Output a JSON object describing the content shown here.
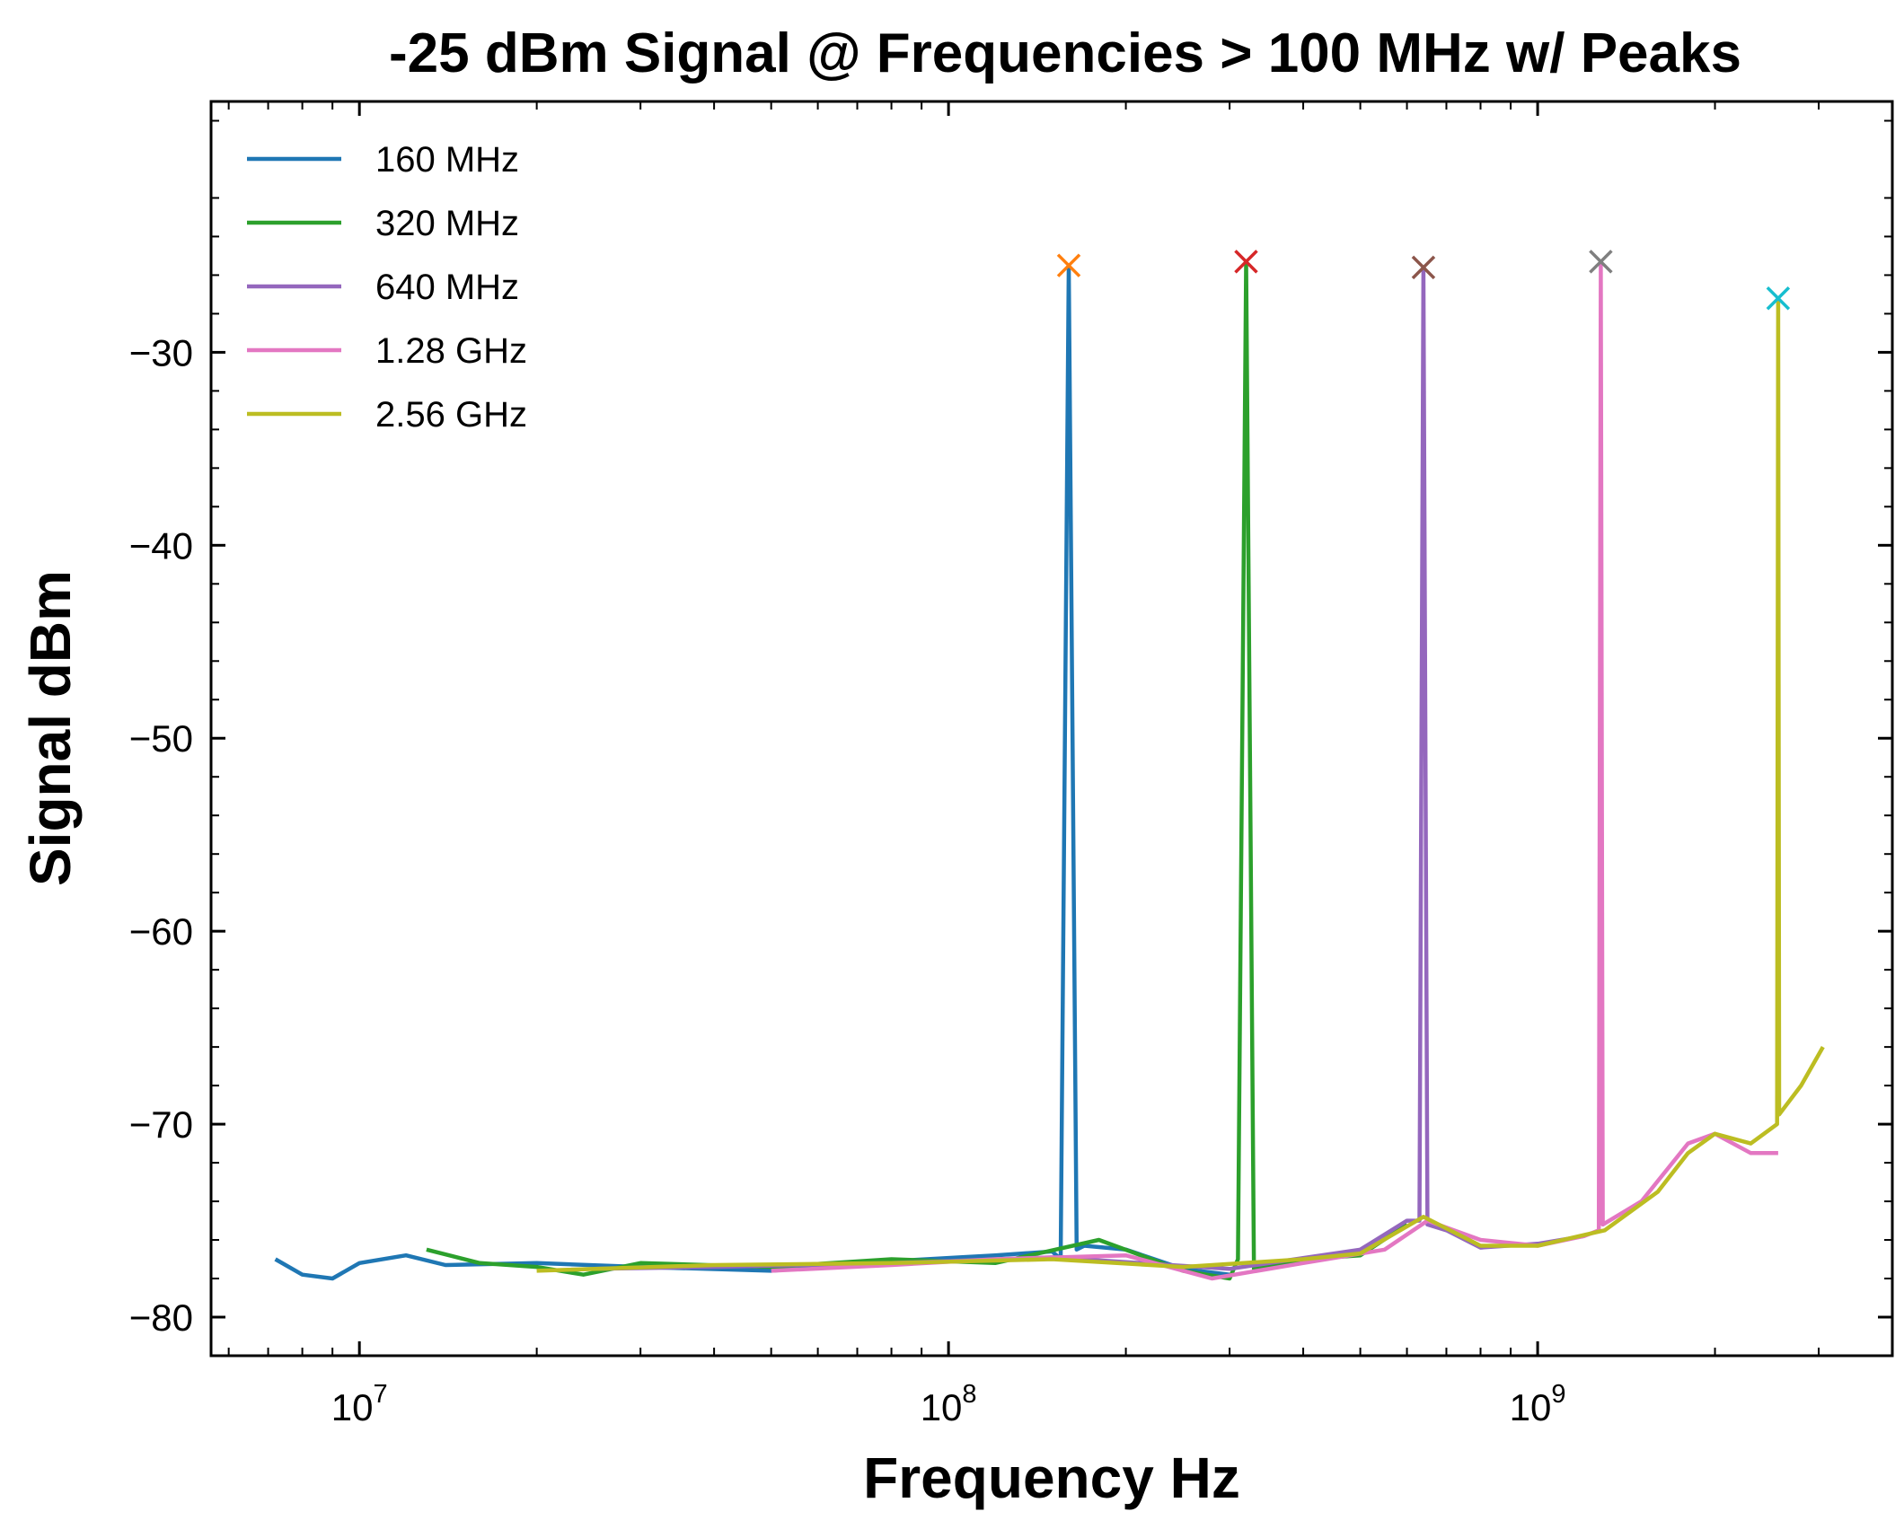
{
  "chart_data": {
    "type": "line",
    "title": "-25 dBm Signal @ Frequencies > 100 MHz w/ Peaks",
    "xlabel": "Frequency Hz",
    "ylabel": "Signal dBm",
    "xscale": "log",
    "xlim": [
      5600000.0,
      4000000000.0
    ],
    "ylim": [
      -82,
      -17
    ],
    "x_ticks": [
      {
        "value": 10000000.0,
        "base": "10",
        "exp": "7"
      },
      {
        "value": 100000000.0,
        "base": "10",
        "exp": "8"
      },
      {
        "value": 1000000000.0,
        "base": "10",
        "exp": "9"
      }
    ],
    "y_ticks": [
      {
        "value": -30,
        "label": "−30"
      },
      {
        "value": -40,
        "label": "−40"
      },
      {
        "value": -50,
        "label": "−50"
      },
      {
        "value": -60,
        "label": "−60"
      },
      {
        "value": -70,
        "label": "−70"
      },
      {
        "value": -80,
        "label": "−80"
      }
    ],
    "grid": false,
    "legend_position": "top-left",
    "series": [
      {
        "name": "160 MHz",
        "color": "#1f77b4",
        "x": [
          7200000.0,
          8000000.0,
          9000000.0,
          10000000.0,
          12000000.0,
          14000000.0,
          20000000.0,
          30000000.0,
          50000000.0,
          80000000.0,
          120000000.0,
          150000000.0,
          155000000.0,
          160000000.0,
          165000000.0,
          170000000.0,
          200000000.0,
          250000000.0,
          300000000.0
        ],
        "y": [
          -77.0,
          -77.8,
          -78.0,
          -77.2,
          -76.8,
          -77.3,
          -77.2,
          -77.4,
          -77.6,
          -77.1,
          -76.8,
          -76.6,
          -77.0,
          -25.5,
          -76.5,
          -76.3,
          -76.5,
          -77.5,
          -77.8
        ]
      },
      {
        "name": "320 MHz",
        "color": "#2ca02c",
        "x": [
          13000000.0,
          16000000.0,
          20000000.0,
          24000000.0,
          30000000.0,
          50000000.0,
          80000000.0,
          120000000.0,
          180000000.0,
          250000000.0,
          300000000.0,
          310000000.0,
          320000000.0,
          330000000.0,
          400000000.0,
          500000000.0,
          600000000.0
        ],
        "y": [
          -76.5,
          -77.2,
          -77.4,
          -77.8,
          -77.2,
          -77.4,
          -77.0,
          -77.2,
          -76.0,
          -77.6,
          -78.0,
          -77.0,
          -25.3,
          -77.5,
          -77.0,
          -76.8,
          -75.2
        ]
      },
      {
        "name": "640 MHz",
        "color": "#9467bd",
        "x": [
          25000000.0,
          40000000.0,
          80000000.0,
          150000000.0,
          300000000.0,
          500000000.0,
          600000000.0,
          630000000.0,
          640000000.0,
          650000000.0,
          700000000.0,
          800000000.0,
          1000000000.0,
          1200000000.0
        ],
        "y": [
          -77.5,
          -77.4,
          -77.2,
          -76.9,
          -77.5,
          -76.5,
          -75.0,
          -75.0,
          -25.6,
          -75.2,
          -75.5,
          -76.4,
          -76.2,
          -75.8
        ]
      },
      {
        "name": "1.28 GHz",
        "color": "#e377c2",
        "x": [
          50000000.0,
          80000000.0,
          120000000.0,
          200000000.0,
          280000000.0,
          400000000.0,
          550000000.0,
          650000000.0,
          800000000.0,
          1000000000.0,
          1200000000.0,
          1270000000.0,
          1280000000.0,
          1290000000.0,
          1500000000.0,
          1800000000.0,
          2000000000.0,
          2300000000.0,
          2560000000.0
        ],
        "y": [
          -77.6,
          -77.3,
          -77.0,
          -76.8,
          -78.0,
          -77.2,
          -76.5,
          -75.0,
          -76.0,
          -76.3,
          -75.8,
          -75.5,
          -25.3,
          -75.2,
          -74.0,
          -71.0,
          -70.5,
          -71.5,
          -71.5
        ]
      },
      {
        "name": "2.56 GHz",
        "color": "#bcbd22",
        "x": [
          20000000.0,
          40000000.0,
          80000000.0,
          150000000.0,
          250000000.0,
          400000000.0,
          500000000.0,
          640000000.0,
          800000000.0,
          1000000000.0,
          1300000000.0,
          1600000000.0,
          1800000000.0,
          2000000000.0,
          2300000000.0,
          2550000000.0,
          2560000000.0,
          2570000000.0,
          2800000000.0,
          3050000000.0
        ],
        "y": [
          -77.6,
          -77.3,
          -77.2,
          -77.0,
          -77.4,
          -77.0,
          -76.7,
          -74.8,
          -76.3,
          -76.3,
          -75.5,
          -73.5,
          -71.5,
          -70.5,
          -71.0,
          -70.0,
          -27.2,
          -69.5,
          -68.0,
          -66.0
        ]
      }
    ],
    "peak_markers": [
      {
        "x": 160000000.0,
        "y": -25.5,
        "color": "#ff7f0e"
      },
      {
        "x": 320000000.0,
        "y": -25.3,
        "color": "#d62728"
      },
      {
        "x": 640000000.0,
        "y": -25.6,
        "color": "#8c564b"
      },
      {
        "x": 1280000000.0,
        "y": -25.3,
        "color": "#7f7f7f"
      },
      {
        "x": 2560000000.0,
        "y": -27.2,
        "color": "#17becf"
      }
    ]
  }
}
